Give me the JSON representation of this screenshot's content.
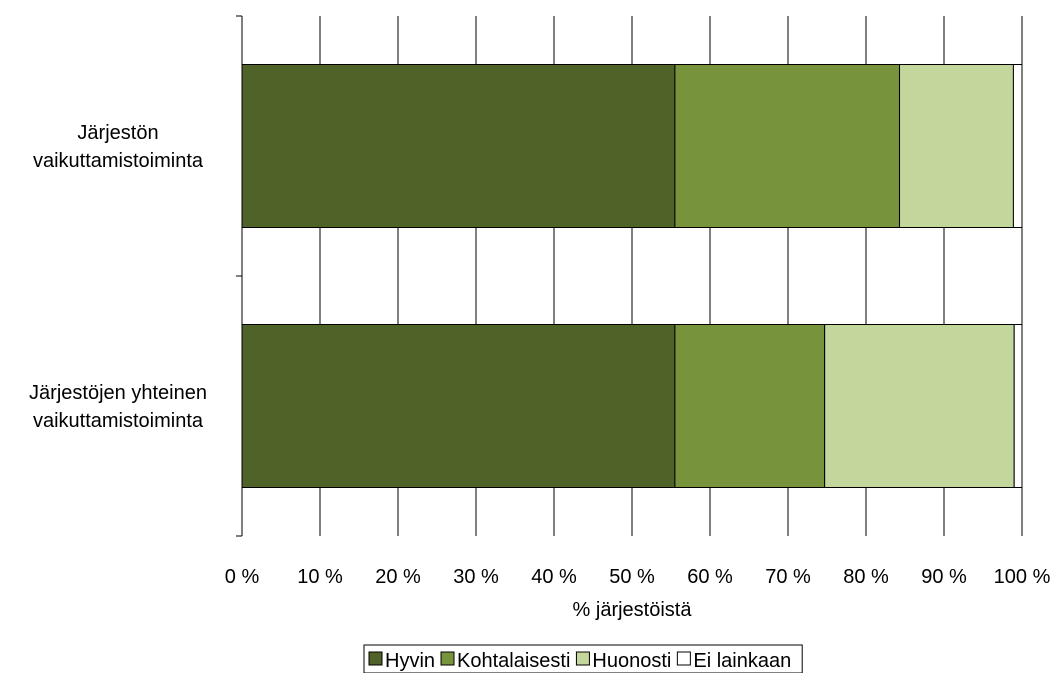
{
  "chart_data": {
    "type": "bar",
    "orientation": "horizontal",
    "stacked": true,
    "percent_stacked": true,
    "categories": [
      "Järjestön\nvaikuttamistoiminta",
      "Järjestöjen yhteinen\nvaikuttamistoiminta"
    ],
    "series": [
      {
        "name": "Hyvin",
        "color": "#4f6228",
        "values": [
          55.5,
          55.5
        ]
      },
      {
        "name": "Kohtalaisesti",
        "color": "#77933c",
        "values": [
          28.8,
          19.2
        ]
      },
      {
        "name": "Huonosti",
        "color": "#c3d69b",
        "values": [
          14.6,
          24.3
        ]
      },
      {
        "name": "Ei lainkaan",
        "color": "#ffffff",
        "values": [
          1.1,
          1.0
        ]
      }
    ],
    "xlim": [
      0,
      100
    ],
    "xticks": [
      0,
      10,
      20,
      30,
      40,
      50,
      60,
      70,
      80,
      90,
      100
    ],
    "xtick_labels": [
      "0 %",
      "10 %",
      "20 %",
      "30 %",
      "40 %",
      "50 %",
      "60 %",
      "70 %",
      "80 %",
      "90 %",
      "100 %"
    ],
    "xlabel": "% järjestöistä",
    "title": "",
    "ylabel": "",
    "grid": "vertical",
    "legend": "bottom"
  }
}
